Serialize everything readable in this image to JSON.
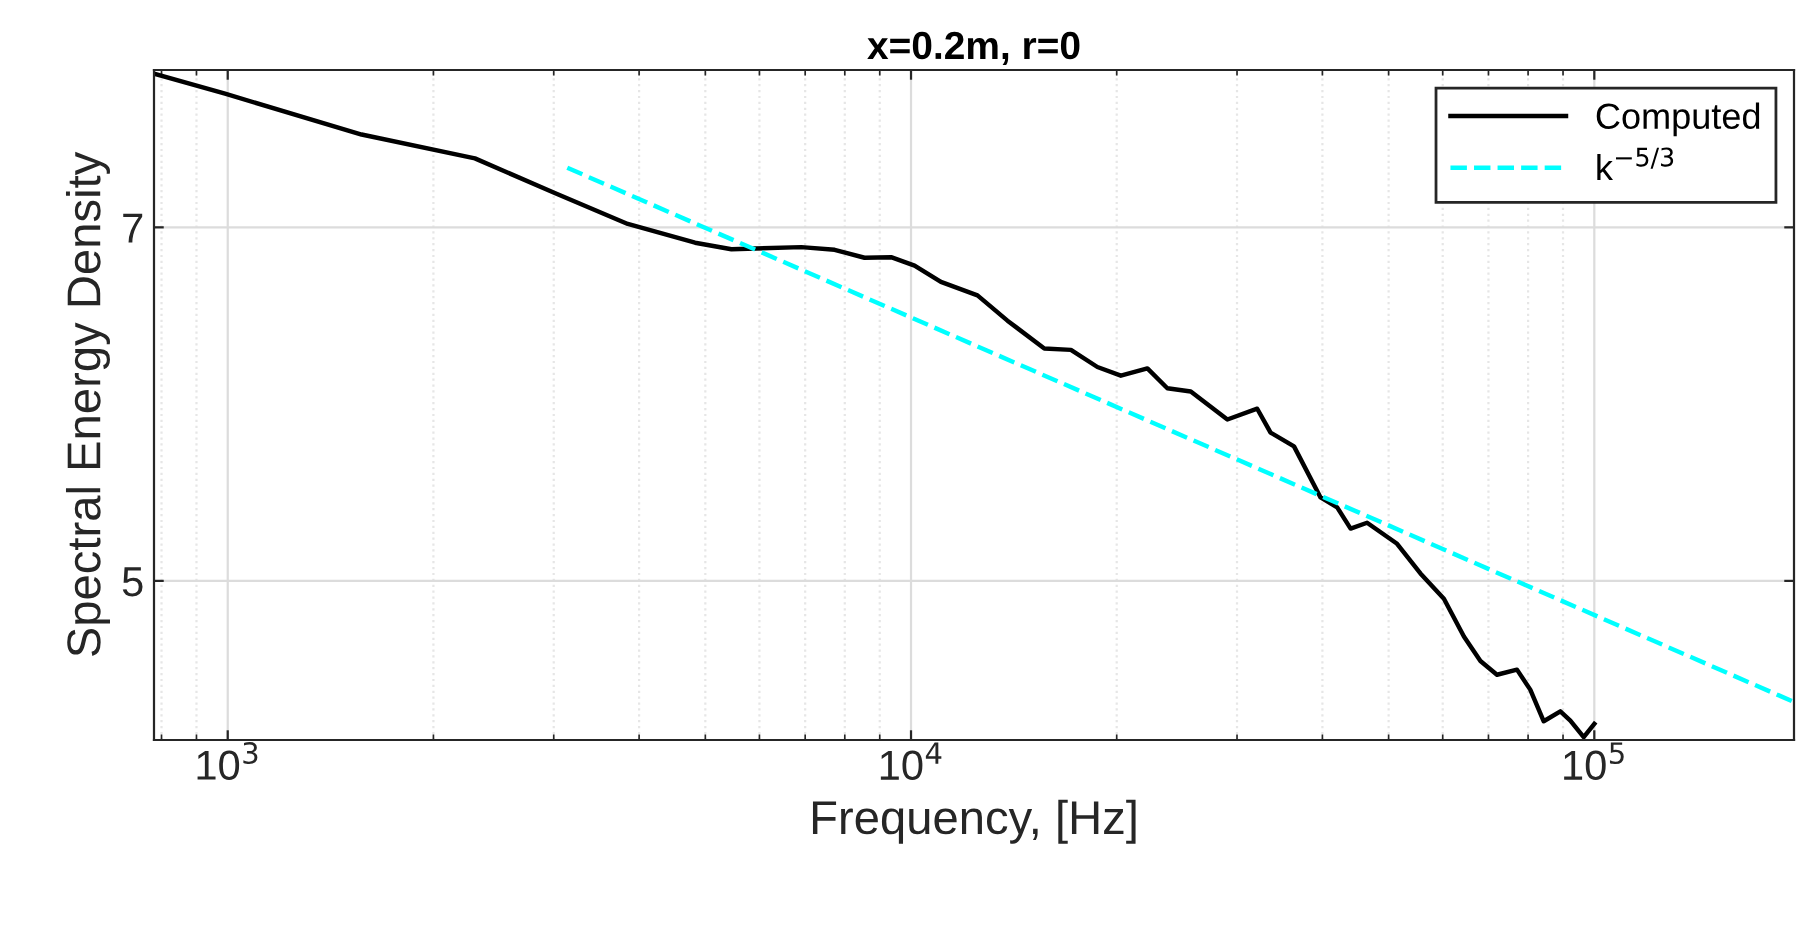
{
  "chart_data": {
    "type": "line",
    "title": "x=0.2m, r=0",
    "xlabel": "Frequency, [Hz]",
    "ylabel": "Spectral Energy Density",
    "log": "x",
    "xlim": [
      780,
      196000
    ],
    "xticks": [
      {
        "value": 1000,
        "label": "10$^{3}$"
      },
      {
        "value": 10000,
        "label": "10$^{4}$"
      },
      {
        "value": 100000,
        "label": "10$^{5}$"
      }
    ],
    "ylim": [
      4.1,
      7.89
    ],
    "yticks": [
      5,
      7
    ],
    "grid": true,
    "legend": "top right",
    "series": [
      {
        "name": "Computed",
        "color": "#000000",
        "line_style": "solid",
        "x": [
          780,
          991,
          1570,
          2300,
          3010,
          3850,
          4830,
          5460,
          6910,
          7730,
          8550,
          9350,
          10120,
          11060,
          12510,
          13840,
          15670,
          17140,
          18740,
          20280,
          22180,
          23720,
          25670,
          29040,
          32110,
          33590,
          36350,
          39750,
          42040,
          43990,
          46500,
          51450,
          55660,
          60240,
          64440,
          68130,
          72040,
          77060,
          80590,
          84330,
          89190,
          92240,
          96490,
          100000
        ],
        "values": [
          7.869,
          7.756,
          7.525,
          7.39,
          7.194,
          7.019,
          6.913,
          6.876,
          6.888,
          6.873,
          6.828,
          6.831,
          6.783,
          6.691,
          6.615,
          6.472,
          6.315,
          6.307,
          6.21,
          6.161,
          6.202,
          6.09,
          6.071,
          5.913,
          5.974,
          5.839,
          5.761,
          5.472,
          5.416,
          5.296,
          5.329,
          5.21,
          5.042,
          4.899,
          4.685,
          4.547,
          4.469,
          4.498,
          4.385,
          4.206,
          4.262,
          4.21,
          4.116,
          4.191
        ]
      },
      {
        "name": "k$^{−5/3}$",
        "color": "#00ffff",
        "line_style": "dashed",
        "x": [
          3140,
          196000
        ],
        "values": [
          7.337,
          4.315
        ]
      }
    ]
  }
}
